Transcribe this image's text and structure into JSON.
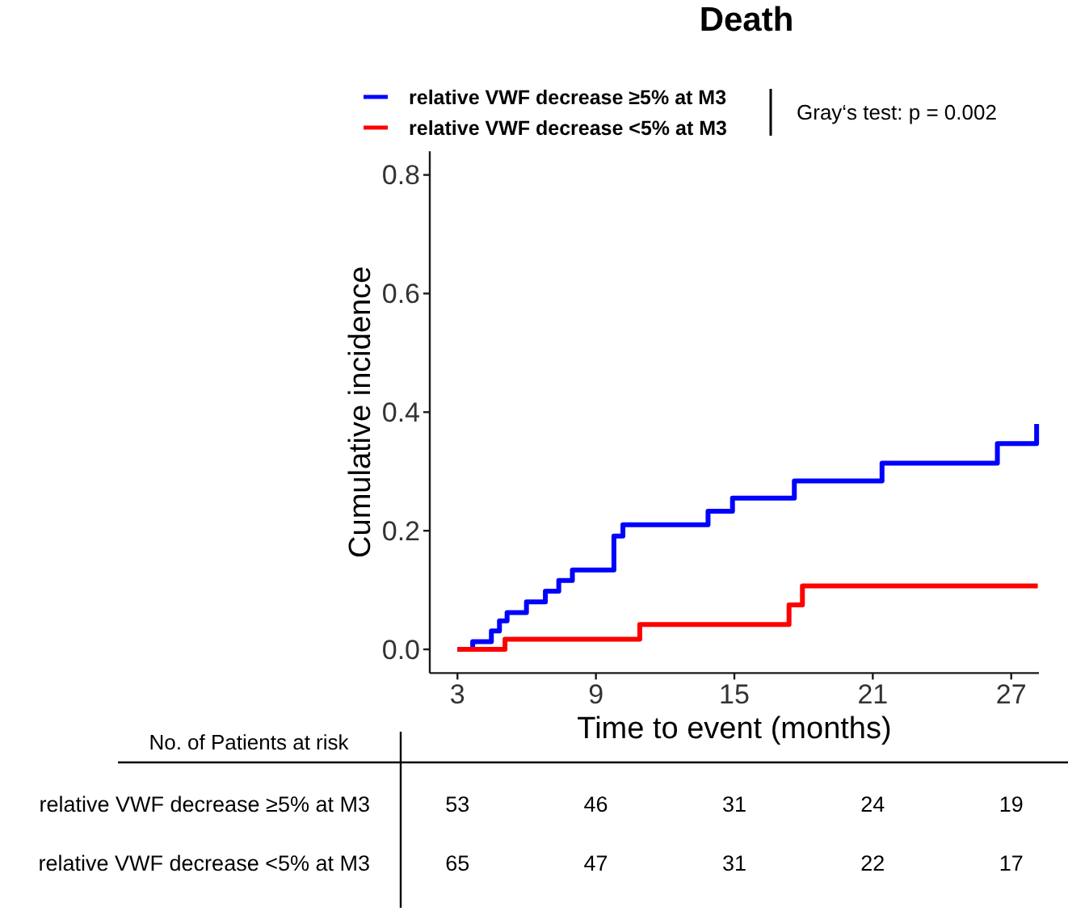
{
  "chart_data": [
    {
      "type": "step",
      "title": "Death",
      "xlabel": "Time to event (months)",
      "ylabel": "Cumulative incidence",
      "annotations": [
        "Gray‘s test: p = 0.002"
      ],
      "legend": "top",
      "xlim": [
        1.8,
        28.2
      ],
      "xticks": [
        3,
        9,
        15,
        21,
        27
      ],
      "ylim": [
        -0.04,
        0.84
      ],
      "yticks": [
        {
          "value": 0,
          "label": "0.0"
        },
        0.2,
        0.4,
        0.6,
        0.8
      ],
      "series": [
        {
          "name": "relative VWF decrease ≥5% at M3",
          "color": "#0000ff",
          "x": [
            3,
            3.66,
            4.47,
            4.82,
            5.15,
            5.99,
            6.81,
            7.39,
            7.98,
            9.78,
            10.17,
            13.86,
            14.92,
            17.6,
            21.4,
            26.4,
            28.1
          ],
          "values": [
            0,
            0.013,
            0.031,
            0.048,
            0.062,
            0.08,
            0.098,
            0.116,
            0.134,
            0.191,
            0.21,
            0.233,
            0.255,
            0.284,
            0.314,
            0.347,
            0.38
          ]
        },
        {
          "name": "relative VWF decrease <5% at M3",
          "color": "#ff0000",
          "x": [
            3,
            5.06,
            10.9,
            17.37,
            17.95,
            28.15
          ],
          "values": [
            0,
            0.017,
            0.042,
            0.075,
            0.107,
            0.107
          ]
        }
      ]
    },
    {
      "type": "other",
      "title": "No. of Patients at risk",
      "annotations": [
        "relative VWF decrease ≥5% at M3",
        "53",
        "46",
        "31",
        "24",
        "19",
        "relative VWF decrease <5% at M3",
        "65",
        "47",
        "31",
        "22",
        "17"
      ]
    }
  ]
}
